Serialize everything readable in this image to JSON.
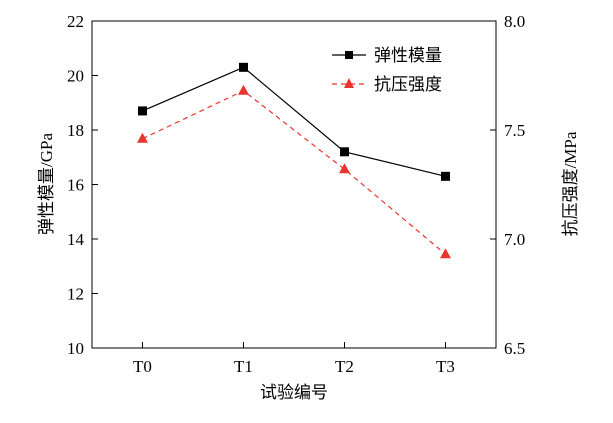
{
  "chart_data": {
    "type": "line",
    "categories": [
      "T0",
      "T1",
      "T2",
      "T3"
    ],
    "xlabel": "试验编号",
    "ylabel": "弹性模量/GPa",
    "y2label": "抗压强度/MPa",
    "ylim": [
      10,
      22
    ],
    "yticks": [
      10,
      12,
      14,
      16,
      18,
      20,
      22
    ],
    "y2lim": [
      6.5,
      8.0
    ],
    "y2ticks": [
      "6.5",
      "7.0",
      "7.5",
      "8.0"
    ],
    "grid": false,
    "legend_position": "top-right",
    "series": [
      {
        "name": "弹性模量",
        "axis": "left",
        "values": [
          18.7,
          20.3,
          17.2,
          16.3
        ],
        "color": "#000000",
        "marker": "square",
        "line": "solid"
      },
      {
        "name": "抗压强度",
        "axis": "right",
        "values": [
          7.46,
          7.68,
          7.32,
          6.93
        ],
        "color": "#e8352e",
        "marker": "triangle",
        "line": "dashed"
      }
    ]
  }
}
